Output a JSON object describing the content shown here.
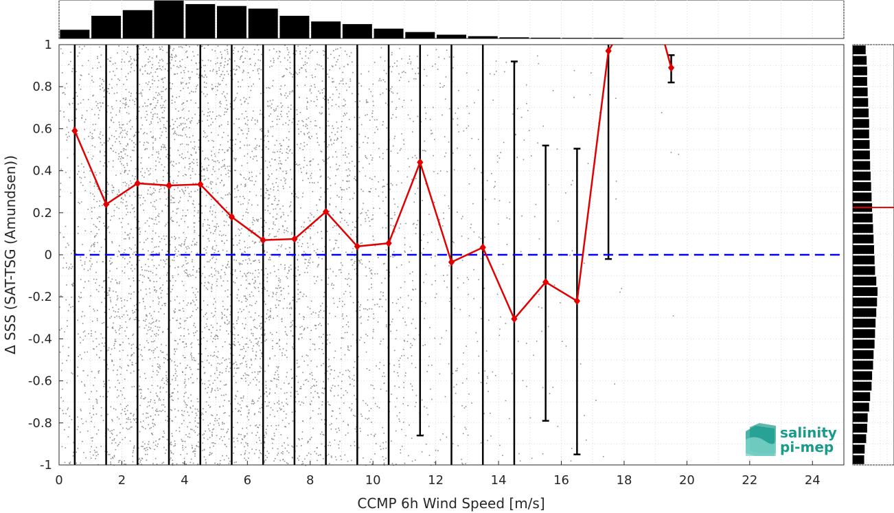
{
  "chart_data": {
    "type": "scatter",
    "xlabel": "CCMP 6h Wind Speed [m/s]",
    "ylabel": "Δ SSS (SAT-TSG (Amundsen))",
    "xlim": [
      0,
      25
    ],
    "ylim": [
      -1,
      1
    ],
    "x_ticks": [
      "0",
      "2",
      "4",
      "6",
      "8",
      "10",
      "12",
      "14",
      "16",
      "18",
      "20",
      "22",
      "24"
    ],
    "y_ticks": [
      "-1",
      "-0.8",
      "-0.6",
      "-0.4",
      "-0.2",
      "0",
      "0.2",
      "0.4",
      "0.6",
      "0.8",
      "1"
    ],
    "grid": true,
    "reference_line": {
      "y": 0,
      "style": "dashed",
      "color": "#0000ff"
    },
    "mean_series": {
      "color": "#e00000",
      "x": [
        0.5,
        1.5,
        2.5,
        3.5,
        4.5,
        5.5,
        6.5,
        7.5,
        8.5,
        9.5,
        10.5,
        11.5,
        12.5,
        13.5,
        14.5,
        15.5,
        16.5,
        17.5,
        19.5
      ],
      "y": [
        0.59,
        0.24,
        0.34,
        0.33,
        0.335,
        0.18,
        0.07,
        0.075,
        0.205,
        0.04,
        0.055,
        0.44,
        -0.035,
        0.035,
        -0.305,
        -0.13,
        -0.22,
        0.97,
        0.89
      ]
    },
    "error_bars": [
      {
        "x": 0.5,
        "low": -1,
        "high": 1
      },
      {
        "x": 1.5,
        "low": -1,
        "high": 1
      },
      {
        "x": 2.5,
        "low": -1,
        "high": 1
      },
      {
        "x": 3.5,
        "low": -1,
        "high": 1
      },
      {
        "x": 4.5,
        "low": -1,
        "high": 1
      },
      {
        "x": 5.5,
        "low": -1,
        "high": 1
      },
      {
        "x": 6.5,
        "low": -1,
        "high": 1
      },
      {
        "x": 7.5,
        "low": -1,
        "high": 1
      },
      {
        "x": 8.5,
        "low": -1,
        "high": 1
      },
      {
        "x": 9.5,
        "low": -1,
        "high": 1
      },
      {
        "x": 10.5,
        "low": -1,
        "high": 1
      },
      {
        "x": 11.5,
        "low": -0.86,
        "high": 1
      },
      {
        "x": 12.5,
        "low": -1,
        "high": 1
      },
      {
        "x": 13.5,
        "low": -1,
        "high": 1
      },
      {
        "x": 14.5,
        "low": -1,
        "high": 0.92
      },
      {
        "x": 15.5,
        "low": -0.79,
        "high": 0.52
      },
      {
        "x": 16.5,
        "low": -0.95,
        "high": 0.505
      },
      {
        "x": 17.5,
        "low": -0.02,
        "high": 1
      },
      {
        "x": 19.5,
        "low": 0.82,
        "high": 0.95
      }
    ],
    "scatter_density": [
      {
        "x": 0.5,
        "count": 250
      },
      {
        "x": 1.5,
        "count": 500
      },
      {
        "x": 2.5,
        "count": 600
      },
      {
        "x": 3.5,
        "count": 650
      },
      {
        "x": 4.5,
        "count": 620
      },
      {
        "x": 5.5,
        "count": 600
      },
      {
        "x": 6.5,
        "count": 550
      },
      {
        "x": 7.5,
        "count": 500
      },
      {
        "x": 8.5,
        "count": 420
      },
      {
        "x": 9.5,
        "count": 330
      },
      {
        "x": 10.5,
        "count": 250
      },
      {
        "x": 11.5,
        "count": 160
      },
      {
        "x": 12.5,
        "count": 110
      },
      {
        "x": 13.5,
        "count": 70
      },
      {
        "x": 14.5,
        "count": 45
      },
      {
        "x": 15.5,
        "count": 28
      },
      {
        "x": 16.5,
        "count": 18
      },
      {
        "x": 17.5,
        "count": 10
      },
      {
        "x": 19.5,
        "count": 4
      }
    ],
    "top_histogram": {
      "x": [
        0.5,
        1.5,
        2.5,
        3.5,
        4.5,
        5.5,
        6.5,
        7.5,
        8.5,
        9.5,
        10.5,
        11.5,
        12.5,
        13.5,
        14.5,
        15.5,
        16.5,
        17.5
      ],
      "values": [
        0.23,
        0.6,
        0.75,
        1.0,
        0.91,
        0.86,
        0.79,
        0.6,
        0.45,
        0.38,
        0.26,
        0.17,
        0.1,
        0.06,
        0.03,
        0.02,
        0.015,
        0.015
      ]
    },
    "right_histogram": {
      "y": [
        -0.975,
        -0.925,
        -0.875,
        -0.825,
        -0.775,
        -0.725,
        -0.675,
        -0.625,
        -0.575,
        -0.525,
        -0.475,
        -0.425,
        -0.375,
        -0.325,
        -0.275,
        -0.225,
        -0.175,
        -0.125,
        -0.075,
        -0.025,
        0.025,
        0.075,
        0.125,
        0.175,
        0.225,
        0.275,
        0.325,
        0.375,
        0.425,
        0.475,
        0.525,
        0.575,
        0.625,
        0.675,
        0.725,
        0.775,
        0.825,
        0.875,
        0.925,
        0.975
      ],
      "values": [
        0.46,
        0.48,
        0.54,
        0.58,
        0.6,
        0.66,
        0.7,
        0.76,
        0.78,
        0.82,
        0.84,
        0.88,
        0.9,
        0.92,
        0.95,
        0.98,
        1.0,
        0.95,
        0.9,
        0.88,
        0.86,
        0.84,
        0.82,
        0.8,
        0.78,
        0.76,
        0.74,
        0.72,
        0.7,
        0.69,
        0.68,
        0.66,
        0.66,
        0.64,
        0.62,
        0.6,
        0.58,
        0.58,
        0.56,
        0.52
      ]
    },
    "median_marker": {
      "y": 0.225,
      "color": "#e00000"
    }
  },
  "logo": {
    "line1": "salinity",
    "line2": "pi-mep",
    "color": "#1a9a8c"
  }
}
